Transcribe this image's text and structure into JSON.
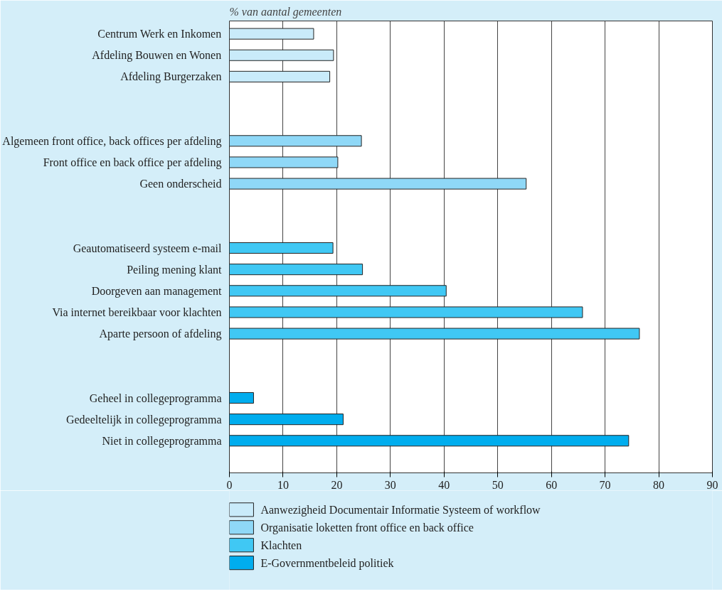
{
  "chart_data": {
    "type": "bar",
    "orientation": "horizontal",
    "xlabel": "% van aantal gemeenten",
    "categories": [
      "Centrum Werk en Inkomen",
      "Afdeling Bouwen en Wonen",
      "Afdeling Burgerzaken",
      null,
      null,
      "Algemeen front office, back offices per afdeling",
      "Front office en back office per afdeling",
      "Geen onderscheid",
      null,
      null,
      "Geautomatiseerd systeem e-mail",
      "Peiling mening klant",
      "Doorgeven aan management",
      "Via internet bereikbaar voor klachten",
      "Aparte persoon of afdeling",
      null,
      null,
      "Geheel in collegeprogramma",
      "Gedeeltelijk in collegeprogramma",
      "Niet in collegeprogramma"
    ],
    "series": [
      {
        "name": "Aanwezigheid Documentair Informatie Systeem of workflow",
        "color": "#c9ebfa",
        "values": [
          15.7,
          19.4,
          18.7,
          null,
          null,
          null,
          null,
          null,
          null,
          null,
          null,
          null,
          null,
          null,
          null,
          null,
          null,
          null,
          null,
          null
        ]
      },
      {
        "name": "Organisatie loketten front office en back office",
        "color": "#8fd8f7",
        "values": [
          null,
          null,
          null,
          null,
          null,
          24.6,
          20.2,
          55.3,
          null,
          null,
          null,
          null,
          null,
          null,
          null,
          null,
          null,
          null,
          null,
          null
        ]
      },
      {
        "name": "Klachten",
        "color": "#40c8f4",
        "values": [
          null,
          null,
          null,
          null,
          null,
          null,
          null,
          null,
          null,
          null,
          19.3,
          24.8,
          40.4,
          65.8,
          76.4,
          null,
          null,
          null,
          null,
          null
        ]
      },
      {
        "name": "E-Governmentbeleid politiek",
        "color": "#00adee",
        "values": [
          null,
          null,
          null,
          null,
          null,
          null,
          null,
          null,
          null,
          null,
          null,
          null,
          null,
          null,
          null,
          null,
          null,
          4.5,
          21.2,
          74.4
        ]
      }
    ],
    "xlim": [
      0,
      90
    ],
    "xticks": [
      0,
      10,
      20,
      30,
      40,
      50,
      60,
      70,
      80,
      90
    ],
    "grid": "x",
    "legend": "bottom"
  }
}
